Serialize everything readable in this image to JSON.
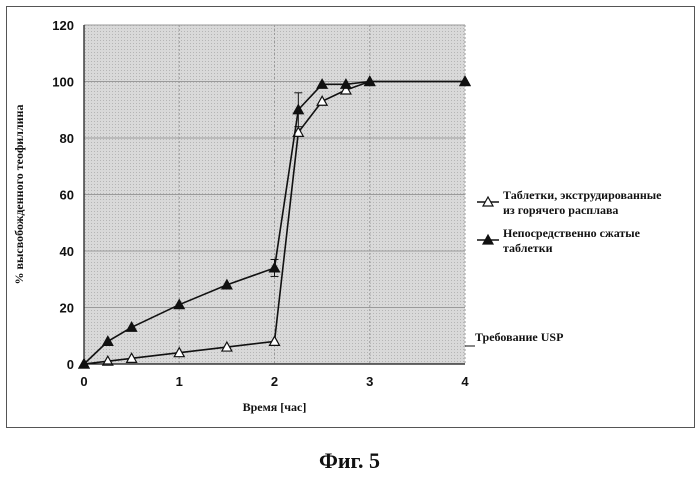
{
  "caption": "Фиг. 5",
  "chart_data": {
    "type": "line",
    "xlabel": "Время [час]",
    "ylabel": "% высвобожденного теофиллина",
    "xlim": [
      0,
      4
    ],
    "ylim": [
      0,
      120
    ],
    "xticks": [
      "0",
      "1",
      "2",
      "3",
      "4"
    ],
    "yticks": [
      "0",
      "20",
      "40",
      "60",
      "80",
      "100",
      "120"
    ],
    "grid": true,
    "legend_position": "right",
    "annotation": "Требование USP",
    "series": [
      {
        "name": "Таблетки, экструдированные из горячего расплава",
        "marker": "open-triangle",
        "x": [
          0,
          0.25,
          0.5,
          1,
          1.5,
          2,
          2.25,
          2.5,
          2.75,
          3,
          4
        ],
        "y": [
          0,
          1,
          2,
          4,
          6,
          8,
          82,
          93,
          97,
          100,
          100
        ]
      },
      {
        "name": "Непосредственно сжатые таблетки",
        "marker": "filled-triangle",
        "x": [
          0,
          0.25,
          0.5,
          1,
          1.5,
          2,
          2.25,
          2.5,
          2.75,
          3,
          4
        ],
        "y": [
          0,
          8,
          13,
          21,
          28,
          34,
          90,
          99,
          99,
          100,
          100
        ]
      }
    ],
    "error_bars": [
      {
        "x": 2,
        "low": 31,
        "high": 37
      },
      {
        "x": 2.25,
        "low": 84,
        "high": 96
      }
    ],
    "colors": {
      "line": "#111111",
      "grid": "#9a9a9a",
      "plot_bg": "#d9d9d9"
    }
  }
}
